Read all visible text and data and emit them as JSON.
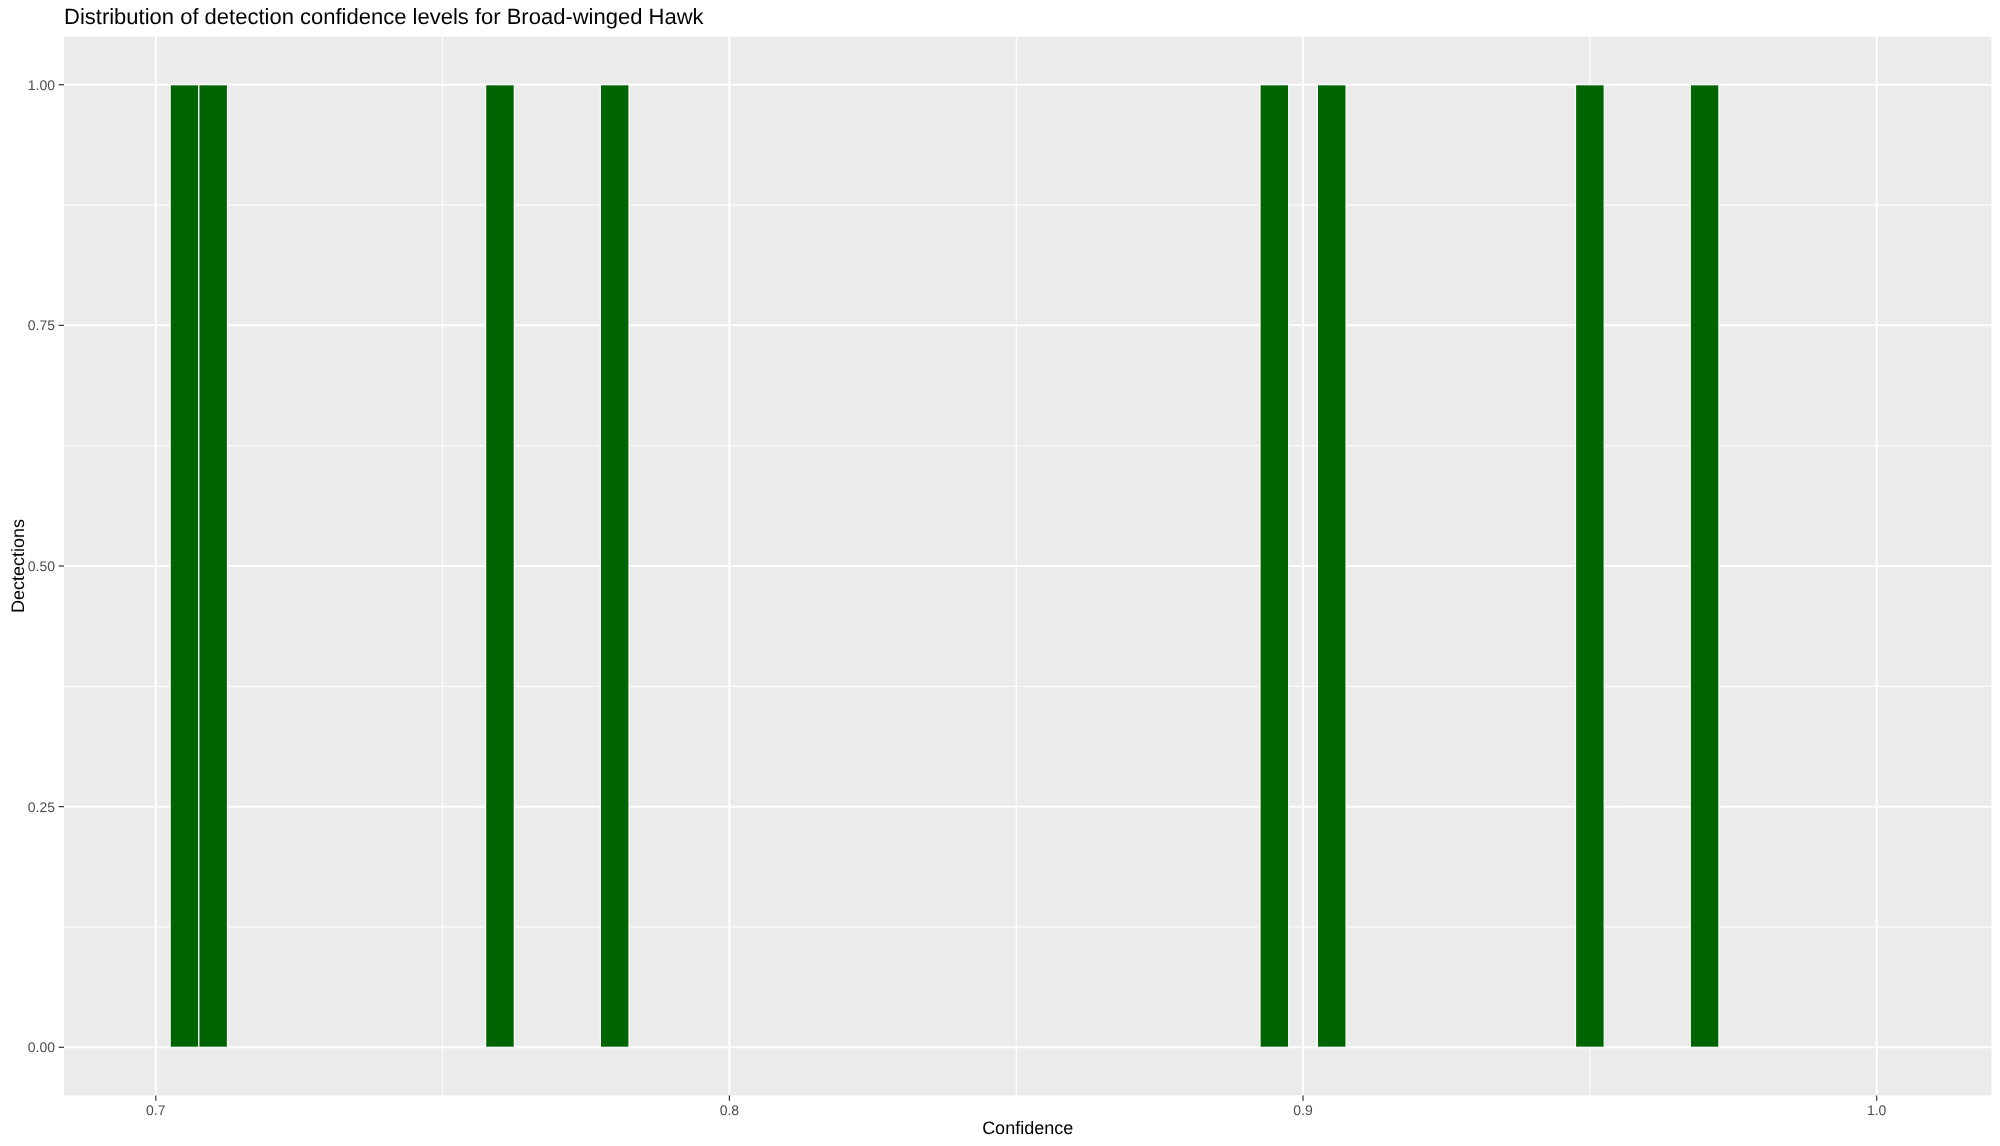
{
  "chart_data": {
    "type": "histogram",
    "title": "Distribution of detection confidence levels for Broad-winged Hawk",
    "xlabel": "Confidence",
    "ylabel": "Dectections",
    "bins": [
      0.7025,
      0.7075,
      0.7125,
      0.7175,
      0.7225,
      0.7275,
      0.7325,
      0.7375,
      0.7425,
      0.7475,
      0.7525,
      0.7575,
      0.7625,
      0.7675,
      0.7725,
      0.7775,
      0.7825,
      0.7875,
      0.7925,
      0.7975,
      0.8025,
      0.8075,
      0.8125,
      0.8175,
      0.8225,
      0.8275,
      0.8325,
      0.8375,
      0.8425,
      0.8475,
      0.8525,
      0.8575,
      0.8625,
      0.8675,
      0.8725,
      0.8775,
      0.8825,
      0.8875,
      0.8925,
      0.8975,
      0.9025,
      0.9075,
      0.9125,
      0.9175,
      0.9225,
      0.9275,
      0.9325,
      0.9375,
      0.9425,
      0.9475,
      0.9525,
      0.9575,
      0.9625,
      0.9675,
      0.9725
    ],
    "values": [
      1,
      1,
      0,
      0,
      0,
      0,
      0,
      0,
      0,
      0,
      0,
      1,
      0,
      0,
      0,
      1,
      0,
      0,
      0,
      0,
      0,
      0,
      0,
      0,
      0,
      0,
      0,
      0,
      0,
      0,
      0,
      0,
      0,
      0,
      0,
      0,
      0,
      0,
      1,
      0,
      1,
      0,
      0,
      0,
      0,
      0,
      0,
      0,
      0,
      1,
      0,
      0,
      0,
      1
    ],
    "color": "#006400",
    "xlim": [
      0.684,
      1.02
    ],
    "xticks": [
      0.7,
      0.8,
      0.9,
      {
        "value": 1,
        "label": "1.0"
      }
    ],
    "ylim": [
      -0.05,
      1.05
    ],
    "yticks": [
      {
        "value": 0,
        "label": "0.00"
      },
      {
        "value": 0.25,
        "label": "0.25"
      },
      {
        "value": 0.5,
        "label": "0.50"
      },
      {
        "value": 0.75,
        "label": "0.75"
      },
      {
        "value": 1,
        "label": "1.00"
      }
    ],
    "grid": true
  }
}
